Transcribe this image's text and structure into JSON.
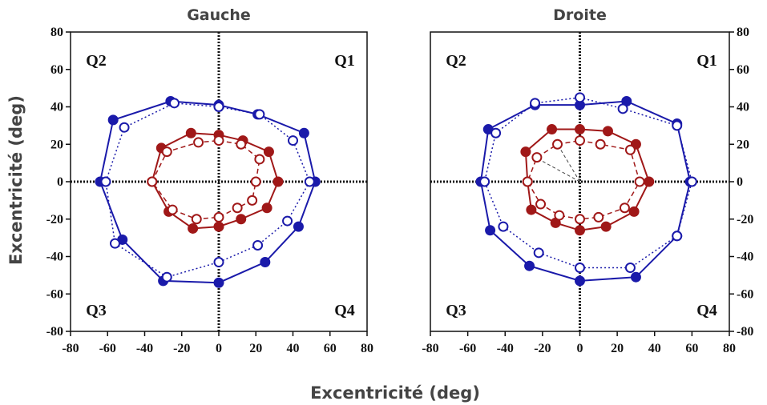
{
  "figure": {
    "shared_ylabel": "Excentricité (deg)",
    "shared_xlabel": "Excentricité (deg)"
  },
  "colors": {
    "blue": "#1a1aaa",
    "red": "#a01818",
    "axis": "#111111"
  },
  "chart_data": [
    {
      "type": "line",
      "title": "Gauche",
      "xlim": [
        -80,
        80
      ],
      "ylim": [
        -80,
        80
      ],
      "xticks": [
        "-80",
        "-60",
        "-40",
        "-20",
        "0",
        "20",
        "40",
        "60",
        "80"
      ],
      "yticks": [
        "80",
        "60",
        "40",
        "20",
        "0",
        "-20",
        "-40",
        "-60",
        "-80"
      ],
      "y_axis_side": "left",
      "quadrant_labels": [
        "Q1",
        "Q2",
        "Q3",
        "Q4"
      ],
      "series": [
        {
          "color": "blue",
          "style": "solid",
          "marker": "filled",
          "points": [
            [
              0,
              41
            ],
            [
              21,
              36
            ],
            [
              46,
              26
            ],
            [
              52,
              0
            ],
            [
              43,
              -24
            ],
            [
              25,
              -43
            ],
            [
              0,
              -54
            ],
            [
              -30,
              -53
            ],
            [
              -52,
              -31
            ],
            [
              -64,
              0
            ],
            [
              -57,
              33
            ],
            [
              -26,
              43
            ],
            [
              0,
              41
            ]
          ]
        },
        {
          "color": "blue",
          "style": "dotted",
          "marker": "open",
          "points": [
            [
              0,
              40
            ],
            [
              22,
              36
            ],
            [
              40,
              22
            ],
            [
              49,
              0
            ],
            [
              37,
              -21
            ],
            [
              21,
              -34
            ],
            [
              0,
              -43
            ],
            [
              -28,
              -51
            ],
            [
              -56,
              -33
            ],
            [
              -61,
              0
            ],
            [
              -51,
              29
            ],
            [
              -24,
              42
            ],
            [
              0,
              40
            ]
          ]
        },
        {
          "color": "red",
          "style": "solid",
          "marker": "filled",
          "points": [
            [
              0,
              25
            ],
            [
              13,
              22
            ],
            [
              27,
              16
            ],
            [
              32,
              0
            ],
            [
              26,
              -14
            ],
            [
              12,
              -20
            ],
            [
              0,
              -24
            ],
            [
              -14,
              -25
            ],
            [
              -27,
              -16
            ],
            [
              -36,
              0
            ],
            [
              -31,
              18
            ],
            [
              -15,
              26
            ],
            [
              0,
              25
            ]
          ]
        },
        {
          "color": "red",
          "style": "dashed",
          "marker": "open",
          "points": [
            [
              0,
              22
            ],
            [
              12,
              20
            ],
            [
              22,
              12
            ],
            [
              20,
              0
            ],
            [
              18,
              -10
            ],
            [
              10,
              -14
            ],
            [
              0,
              -19
            ],
            [
              -12,
              -20
            ],
            [
              -25,
              -15
            ],
            [
              -36,
              0
            ],
            [
              -28,
              16
            ],
            [
              -11,
              21
            ],
            [
              0,
              22
            ]
          ]
        }
      ]
    },
    {
      "type": "line",
      "title": "Droite",
      "xlim": [
        -80,
        80
      ],
      "ylim": [
        -80,
        80
      ],
      "xticks": [
        "-80",
        "-60",
        "-40",
        "-20",
        "0",
        "20",
        "40",
        "60",
        "80"
      ],
      "yticks": [
        "80",
        "60",
        "40",
        "20",
        "0",
        "-20",
        "-40",
        "-60",
        "-80"
      ],
      "y_axis_side": "right",
      "quadrant_labels": [
        "Q1",
        "Q2",
        "Q3",
        "Q4"
      ],
      "series": [
        {
          "color": "blue",
          "style": "solid",
          "marker": "filled",
          "points": [
            [
              0,
              41
            ],
            [
              25,
              43
            ],
            [
              52,
              31
            ],
            [
              59,
              0
            ],
            [
              52,
              -29
            ],
            [
              30,
              -51
            ],
            [
              0,
              -53
            ],
            [
              -27,
              -45
            ],
            [
              -48,
              -26
            ],
            [
              -53,
              0
            ],
            [
              -49,
              28
            ],
            [
              -24,
              41
            ],
            [
              0,
              41
            ]
          ]
        },
        {
          "color": "blue",
          "style": "dotted",
          "marker": "open",
          "points": [
            [
              0,
              45
            ],
            [
              23,
              39
            ],
            [
              52,
              30
            ],
            [
              60,
              0
            ],
            [
              52,
              -29
            ],
            [
              27,
              -46
            ],
            [
              0,
              -46
            ],
            [
              -22,
              -38
            ],
            [
              -41,
              -24
            ],
            [
              -51,
              0
            ],
            [
              -45,
              26
            ],
            [
              -24,
              42
            ],
            [
              0,
              45
            ]
          ]
        },
        {
          "color": "red",
          "style": "solid",
          "marker": "filled",
          "points": [
            [
              0,
              28
            ],
            [
              15,
              27
            ],
            [
              30,
              20
            ],
            [
              37,
              0
            ],
            [
              29,
              -16
            ],
            [
              14,
              -24
            ],
            [
              0,
              -26
            ],
            [
              -13,
              -22
            ],
            [
              -26,
              -15
            ],
            [
              -28,
              0
            ],
            [
              -29,
              16
            ],
            [
              -15,
              28
            ],
            [
              0,
              28
            ]
          ]
        },
        {
          "color": "red",
          "style": "dashed",
          "marker": "open",
          "points": [
            [
              0,
              22
            ],
            [
              11,
              20
            ],
            [
              27,
              17
            ],
            [
              32,
              0
            ],
            [
              24,
              -14
            ],
            [
              10,
              -19
            ],
            [
              0,
              -20
            ],
            [
              -11,
              -18
            ],
            [
              -21,
              -12
            ],
            [
              -28,
              0
            ],
            [
              -23,
              13
            ],
            [
              -12,
              20
            ],
            [
              0,
              22
            ]
          ]
        }
      ],
      "extra_lines": [
        {
          "style": "dashed",
          "color": "#444",
          "points": [
            [
              0,
              0
            ],
            [
              -22,
              12
            ]
          ]
        },
        {
          "style": "dashed",
          "color": "#444",
          "points": [
            [
              0,
              0
            ],
            [
              -12,
              20
            ]
          ]
        },
        {
          "style": "dashed",
          "color": "#444",
          "points": [
            [
              0,
              0
            ],
            [
              0,
              22
            ]
          ]
        }
      ]
    }
  ]
}
